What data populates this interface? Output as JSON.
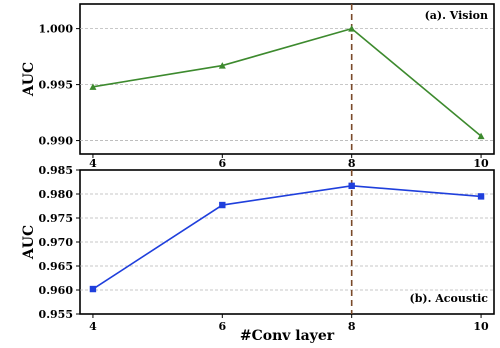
{
  "chart_data": [
    {
      "type": "line",
      "title": "(a). Vision",
      "ylabel": "AUC",
      "xlabel": "",
      "x": [
        4,
        6,
        8,
        10
      ],
      "xticks": [
        4,
        6,
        8,
        10
      ],
      "yticks": [
        "0.990",
        "0.995",
        "1.000"
      ],
      "ylim": [
        0.9888,
        1.0022
      ],
      "xlim": [
        3.8,
        10.2
      ],
      "grid": "horizontal-dashed",
      "reference_x": 8,
      "series": [
        {
          "values": [
            0.9948,
            0.9967,
            1.0,
            0.9904
          ],
          "color": "#3d8a2e",
          "marker": "triangle"
        }
      ]
    },
    {
      "type": "line",
      "title": "(b). Acoustic",
      "ylabel": "AUC",
      "xlabel": "#Conv layer",
      "x": [
        4,
        6,
        8,
        10
      ],
      "xticks": [
        4,
        6,
        8,
        10
      ],
      "yticks": [
        "0.955",
        "0.960",
        "0.965",
        "0.970",
        "0.975",
        "0.980",
        "0.985"
      ],
      "ylim": [
        0.955,
        0.985
      ],
      "xlim": [
        3.8,
        10.2
      ],
      "grid": "horizontal-dashed",
      "reference_x": 8,
      "series": [
        {
          "values": [
            0.9602,
            0.9777,
            0.9817,
            0.9795
          ],
          "color": "#1f3fdc",
          "marker": "square"
        }
      ]
    }
  ]
}
